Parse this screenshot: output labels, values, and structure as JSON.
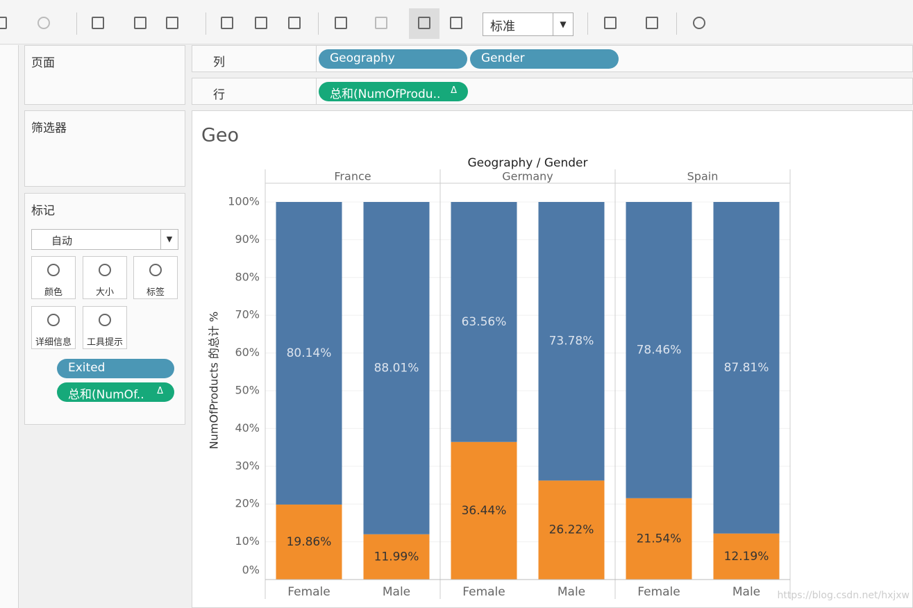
{
  "toolbar": {
    "dropdown": "标准"
  },
  "sidebar": {
    "pages": "页面",
    "filters": "筛选器",
    "marks": {
      "title": "标记",
      "type": "自动",
      "buttons": [
        "颜色",
        "大小",
        "标签",
        "详细信息",
        "工具提示"
      ],
      "pills": [
        {
          "text": "Exited"
        },
        {
          "text": "总和(NumOf..",
          "delta": "Δ"
        }
      ]
    }
  },
  "shelves": {
    "columns": {
      "label": "列",
      "pills": [
        "Geography",
        "Gender"
      ]
    },
    "rows": {
      "label": "行",
      "pills": [
        {
          "text": "总和(NumOfProdu..",
          "delta": "Δ"
        }
      ]
    }
  },
  "watermark": "https://blog.csdn.net/hxjxw",
  "chart_data": {
    "type": "bar",
    "stacked": true,
    "title": "Geo",
    "header": "Geography / Gender",
    "ylabel": "NumOfProducts 的总计 %",
    "groups": [
      "France",
      "Germany",
      "Spain"
    ],
    "categories": [
      "Female",
      "Male",
      "Female",
      "Male",
      "Female",
      "Male"
    ],
    "series": [
      {
        "color": "#f28e2b",
        "values": [
          19.86,
          11.99,
          36.44,
          26.22,
          21.54,
          12.19
        ],
        "value_labels": [
          "19.86%",
          "11.99%",
          "36.44%",
          "26.22%",
          "21.54%",
          "12.19%"
        ]
      },
      {
        "color": "#4e79a7",
        "values": [
          80.14,
          88.01,
          63.56,
          73.78,
          78.46,
          87.81
        ],
        "value_labels": [
          "80.14%",
          "88.01%",
          "63.56%",
          "73.78%",
          "78.46%",
          "87.81%"
        ]
      }
    ],
    "ylim": [
      0,
      100
    ],
    "yticks": [
      {
        "value": 0,
        "label": "0%"
      },
      {
        "value": 10,
        "label": "10%"
      },
      {
        "value": 20,
        "label": "20%"
      },
      {
        "value": 30,
        "label": "30%"
      },
      {
        "value": 40,
        "label": "40%"
      },
      {
        "value": 50,
        "label": "50%"
      },
      {
        "value": 60,
        "label": "60%"
      },
      {
        "value": 70,
        "label": "70%"
      },
      {
        "value": 80,
        "label": "80%"
      },
      {
        "value": 90,
        "label": "90%"
      },
      {
        "value": 100,
        "label": "100%"
      }
    ],
    "grid": true
  }
}
